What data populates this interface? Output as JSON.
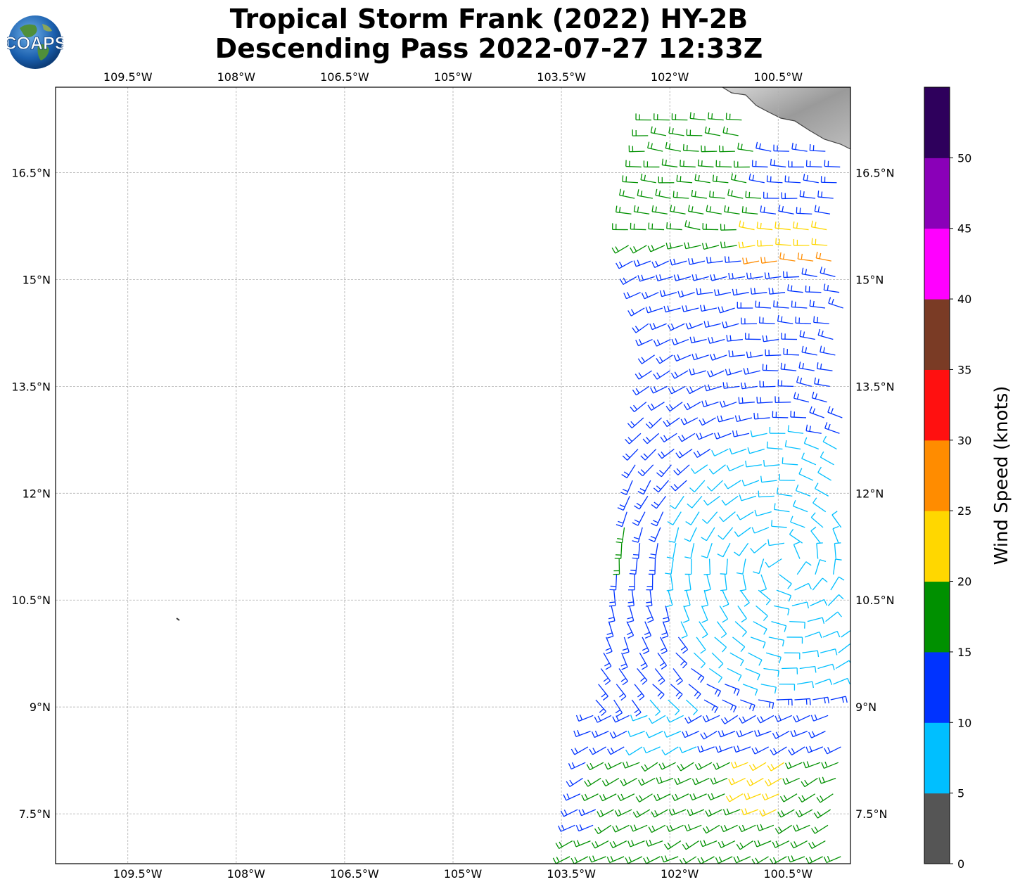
{
  "header": {
    "title_line1": "Tropical Storm Frank (2022) HY-2B",
    "title_line2": "Descending Pass 2022-07-27 12:33Z",
    "logo_text": "COAPS"
  },
  "map": {
    "lon_range": [
      -110.5,
      -99.5
    ],
    "lat_range": [
      6.8,
      17.7
    ],
    "lon_ticks": [
      {
        "value": -109.5,
        "label": "109.5°W"
      },
      {
        "value": -108.0,
        "label": "108°W"
      },
      {
        "value": -106.5,
        "label": "106.5°W"
      },
      {
        "value": -105.0,
        "label": "105°W"
      },
      {
        "value": -103.5,
        "label": "103.5°W"
      },
      {
        "value": -102.0,
        "label": "102°W"
      },
      {
        "value": -100.5,
        "label": "100.5°W"
      }
    ],
    "lat_ticks": [
      {
        "value": 16.5,
        "label": "16.5°N"
      },
      {
        "value": 15.0,
        "label": "15°N"
      },
      {
        "value": 13.5,
        "label": "13.5°N"
      },
      {
        "value": 12.0,
        "label": "12°N"
      },
      {
        "value": 10.5,
        "label": "10.5°N"
      },
      {
        "value": 9.0,
        "label": "9°N"
      },
      {
        "value": 7.5,
        "label": "7.5°N"
      }
    ],
    "gridlines": true,
    "land_colors": [
      "#8c8c8c",
      "#d8d8d8"
    ],
    "coastline_color": "#444444"
  },
  "colorbar": {
    "label": "Wind Speed (knots)",
    "ticks": [
      "0",
      "5",
      "10",
      "15",
      "20",
      "25",
      "30",
      "35",
      "40",
      "45",
      "50"
    ],
    "colors": [
      "#555555",
      "#00bfff",
      "#0033ff",
      "#009000",
      "#ffd700",
      "#ff8c00",
      "#ff1010",
      "#7a3b25",
      "#ff00ff",
      "#8a00b8",
      "#2e005c"
    ]
  },
  "wind_field": {
    "swath_left_edge": [
      [
        -103.4,
        6.8
      ],
      [
        -102.6,
        11.7
      ],
      [
        -102.2,
        14.0
      ],
      [
        -102.6,
        15.6
      ],
      [
        -102.2,
        17.5
      ]
    ],
    "colors_by_speed": {
      "5-10": "#00bfff",
      "10-15": "#0033ff",
      "15-20": "#009000",
      "20-25": "#ffd700",
      "25-30": "#ff8c00"
    }
  }
}
